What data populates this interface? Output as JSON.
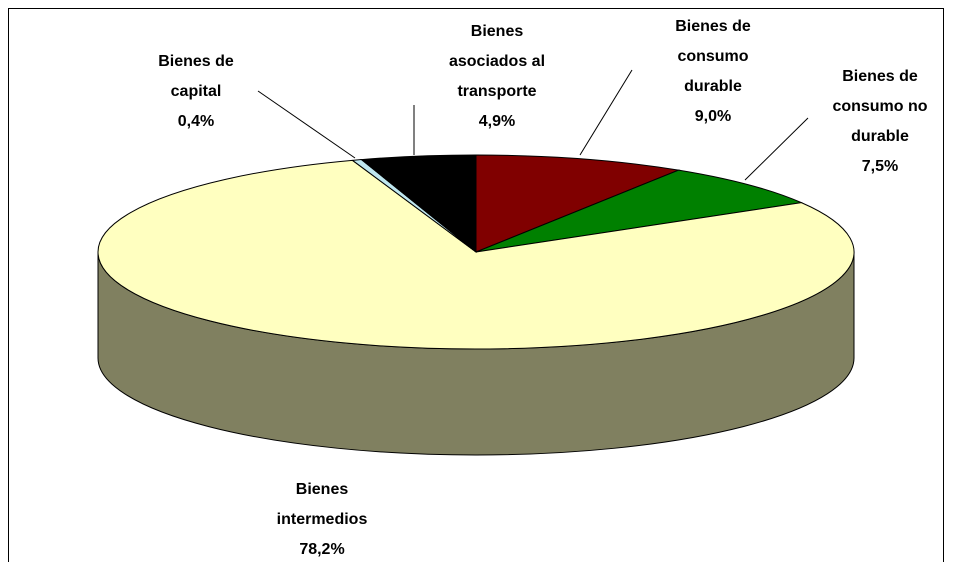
{
  "chart_data": {
    "type": "pie3d",
    "categories": [
      "Bienes de consumo durable",
      "Bienes de consumo no durable",
      "Bienes intermedios",
      "Bienes de capital",
      "Bienes asociados al transporte"
    ],
    "values": [
      9.0,
      7.5,
      78.2,
      0.4,
      4.9
    ],
    "value_labels": [
      "9,0%",
      "7,5%",
      "78,2%",
      "0,4%",
      "4,9%"
    ],
    "colors": [
      "#800000",
      "#008000",
      "#ffffc0",
      "#c0e8f0",
      "#000000"
    ]
  }
}
